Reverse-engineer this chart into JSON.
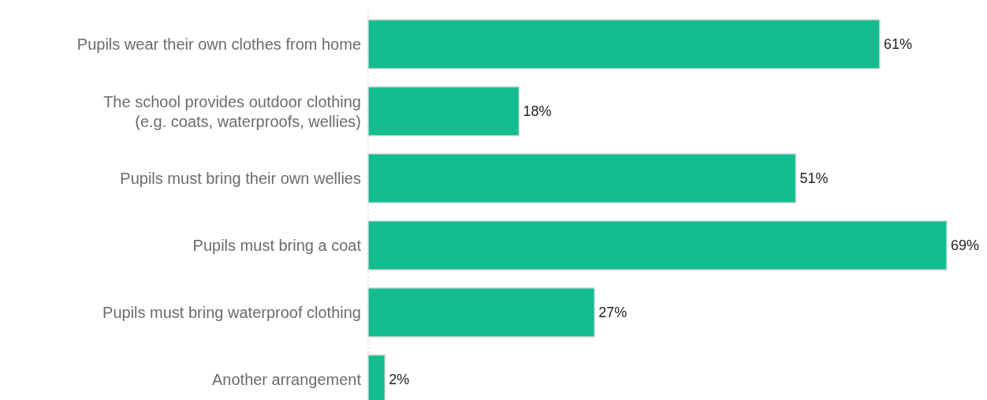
{
  "chart_data": {
    "type": "bar",
    "orientation": "horizontal",
    "categories": [
      "Pupils wear their own clothes from home",
      "The school provides outdoor clothing (e.g. coats, waterproofs, wellies)",
      "Pupils must bring their own wellies",
      "Pupils must bring a coat",
      "Pupils must bring waterproof clothing",
      "Another arrangement"
    ],
    "values": [
      61,
      18,
      51,
      69,
      27,
      2
    ],
    "value_labels": [
      "61%",
      "18%",
      "51%",
      "69%",
      "27%",
      "2%"
    ],
    "color": "#13bd8f"
  }
}
